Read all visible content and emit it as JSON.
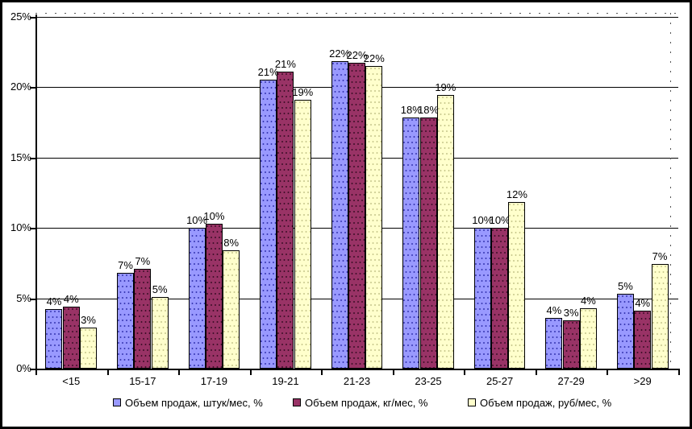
{
  "chart_data": {
    "type": "bar",
    "title": "",
    "categories": [
      "<15",
      "15-17",
      "17-19",
      "19-21",
      "21-23",
      "23-25",
      "25-27",
      "27-29",
      ">29"
    ],
    "series": [
      {
        "name": "Объем продаж, штук/мес, %",
        "color": "#9999FF",
        "dot_color": "#3A3AB4",
        "values": [
          4.2,
          6.8,
          10.0,
          20.5,
          21.8,
          17.8,
          10.0,
          3.6,
          5.3
        ],
        "labels": [
          "4%",
          "7%",
          "10%",
          "21%",
          "22%",
          "18%",
          "10%",
          "4%",
          "5%"
        ]
      },
      {
        "name": "Объем продаж, кг/мес, %",
        "color": "#993366",
        "dot_color": "#40102A",
        "values": [
          4.4,
          7.1,
          10.3,
          21.1,
          21.7,
          17.8,
          10.0,
          3.4,
          4.1
        ],
        "labels": [
          "4%",
          "7%",
          "10%",
          "21%",
          "22%",
          "18%",
          "10%",
          "3%",
          "4%"
        ]
      },
      {
        "name": "Объем продаж, руб/мес, %",
        "color": "#FFFFCC",
        "dot_color": "#C8C88E",
        "values": [
          2.9,
          5.1,
          8.4,
          19.1,
          21.5,
          19.4,
          11.8,
          4.3,
          7.4
        ],
        "labels": [
          "3%",
          "5%",
          "8%",
          "19%",
          "22%",
          "19%",
          "12%",
          "4%",
          "7%"
        ]
      }
    ],
    "y_axis": {
      "ticks": [
        "0%",
        "5%",
        "10%",
        "15%",
        "20%",
        "25%"
      ],
      "min": 0,
      "max": 25
    },
    "grid": true,
    "legend_position": "bottom"
  }
}
